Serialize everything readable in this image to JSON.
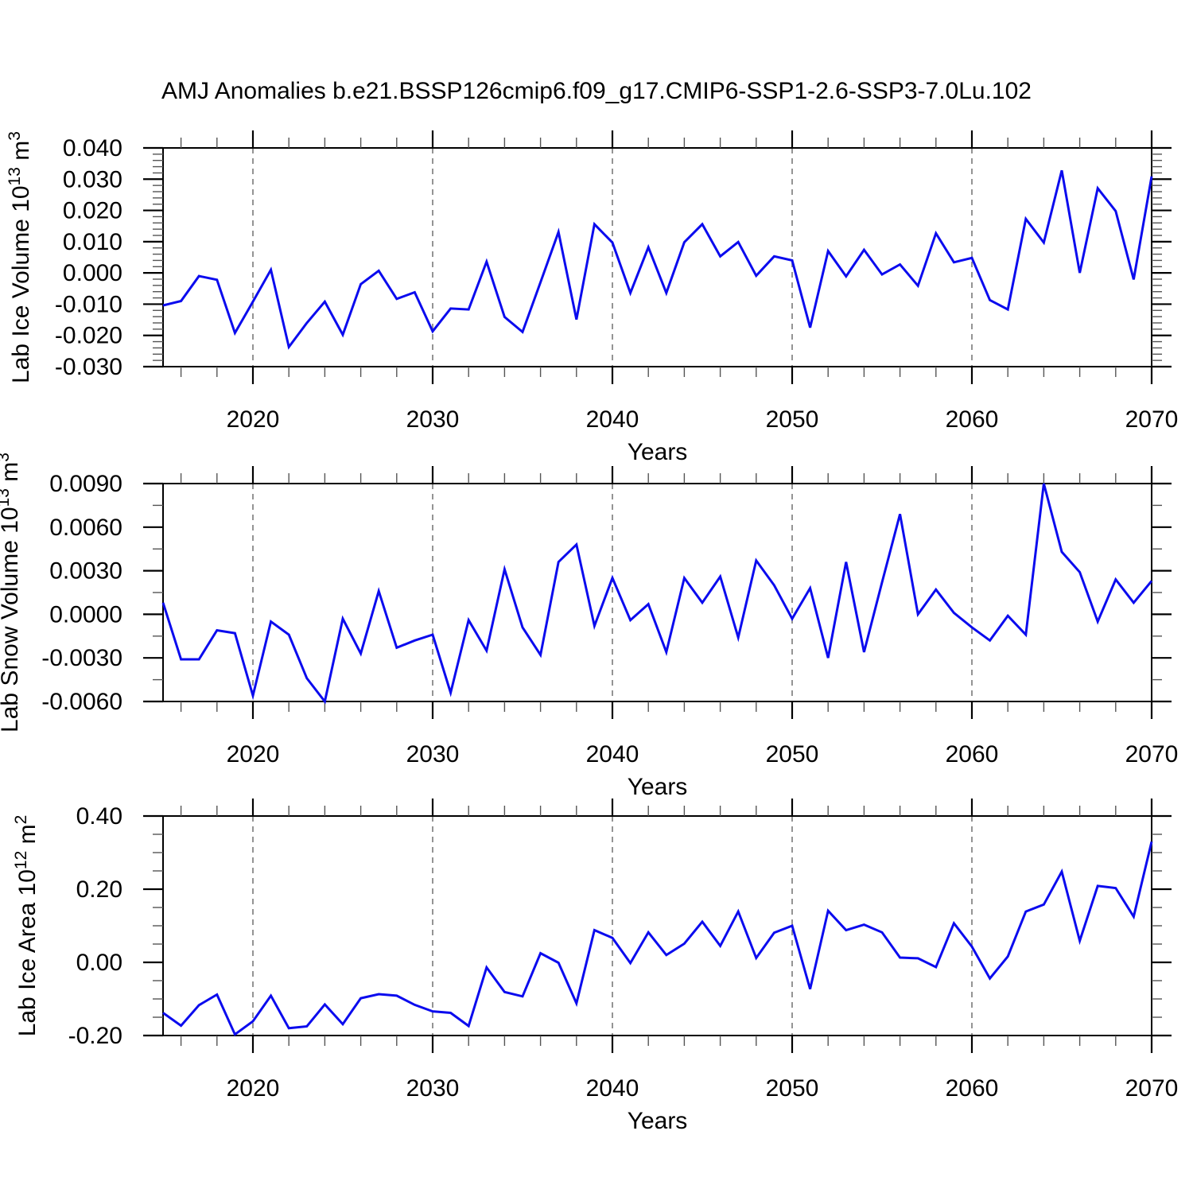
{
  "title": "AMJ Anomalies b.e21.BSSP126cmip6.f09_g17.CMIP6-SSP1-2.6-SSP3-7.0Lu.102",
  "line_color": "#0b0bee",
  "grid_color": "#888888",
  "axis_color": "#000000",
  "chart_data": [
    {
      "type": "line",
      "xlabel": "Years",
      "ylabel": "Lab Ice Volume 10^13 m^3",
      "ylabel_parts": [
        {
          "t": "Lab Ice Volume 10"
        },
        {
          "t": "13",
          "sup": true
        },
        {
          "t": " m"
        },
        {
          "t": "3",
          "sup": true
        }
      ],
      "x": [
        2015,
        2016,
        2017,
        2018,
        2019,
        2020,
        2021,
        2022,
        2023,
        2024,
        2025,
        2026,
        2027,
        2028,
        2029,
        2030,
        2031,
        2032,
        2033,
        2034,
        2035,
        2036,
        2037,
        2038,
        2039,
        2040,
        2041,
        2042,
        2043,
        2044,
        2045,
        2046,
        2047,
        2048,
        2049,
        2050,
        2051,
        2052,
        2053,
        2054,
        2055,
        2056,
        2057,
        2058,
        2059,
        2060,
        2061,
        2062,
        2063,
        2064,
        2065,
        2066,
        2067,
        2068,
        2069,
        2070
      ],
      "values": [
        -0.0104,
        -0.009,
        -0.001,
        -0.0022,
        -0.0192,
        -0.0092,
        0.001,
        -0.0237,
        -0.016,
        -0.0092,
        -0.0198,
        -0.0036,
        0.0007,
        -0.0083,
        -0.0062,
        -0.0187,
        -0.0114,
        -0.0117,
        0.0036,
        -0.0141,
        -0.0189,
        -0.003,
        0.0131,
        -0.0149,
        0.0156,
        0.0097,
        -0.0064,
        0.0082,
        -0.0064,
        0.0098,
        0.0156,
        0.0053,
        0.0099,
        -0.0009,
        0.0053,
        0.004,
        -0.0175,
        0.007,
        -0.0011,
        0.0074,
        -0.0005,
        0.0027,
        -0.0041,
        0.0127,
        0.0034,
        0.0048,
        -0.0087,
        -0.0117,
        0.0173,
        0.0097,
        0.0328,
        0.0,
        0.0271,
        0.0198,
        -0.0021,
        0.0309
      ],
      "ylim": [
        -0.03,
        0.04
      ],
      "yticks": [
        -0.03,
        -0.02,
        -0.01,
        0.0,
        0.01,
        0.02,
        0.03,
        0.04
      ],
      "ytick_labels": [
        "-0.030",
        "-0.020",
        "-0.010",
        "0.000",
        "0.010",
        "0.020",
        "0.030",
        "0.040"
      ],
      "ytick_step": 0.01,
      "yminor_step": 0.002,
      "xlim": [
        2015,
        2070
      ],
      "xticks": [
        2020,
        2030,
        2040,
        2050,
        2060,
        2070
      ],
      "xtick_labels": [
        "2020",
        "2030",
        "2040",
        "2050",
        "2060",
        "2070"
      ],
      "xminor_step": 2,
      "gridlines_at": [
        2020,
        2030,
        2040,
        2050,
        2060
      ],
      "grid": "vertical-dashed",
      "legend": "none"
    },
    {
      "type": "line",
      "xlabel": "Years",
      "ylabel": "Lab Snow Volume 10^13 m^3",
      "ylabel_parts": [
        {
          "t": "Lab Snow Volume 10"
        },
        {
          "t": "13",
          "sup": true
        },
        {
          "t": " m"
        },
        {
          "t": "3",
          "sup": true
        }
      ],
      "x": [
        2015,
        2016,
        2017,
        2018,
        2019,
        2020,
        2021,
        2022,
        2023,
        2024,
        2025,
        2026,
        2027,
        2028,
        2029,
        2030,
        2031,
        2032,
        2033,
        2034,
        2035,
        2036,
        2037,
        2038,
        2039,
        2040,
        2041,
        2042,
        2043,
        2044,
        2045,
        2046,
        2047,
        2048,
        2049,
        2050,
        2051,
        2052,
        2053,
        2054,
        2055,
        2056,
        2057,
        2058,
        2059,
        2060,
        2061,
        2062,
        2063,
        2064,
        2065,
        2066,
        2067,
        2068,
        2069,
        2070
      ],
      "values": [
        0.0008,
        -0.0031,
        -0.0031,
        -0.0011,
        -0.0013,
        -0.0056,
        -0.0005,
        -0.0014,
        -0.0044,
        -0.006,
        -0.0003,
        -0.0027,
        0.0016,
        -0.0023,
        -0.0018,
        -0.0014,
        -0.0054,
        -0.0004,
        -0.0025,
        0.0031,
        -0.0009,
        -0.0028,
        0.0036,
        0.0048,
        -0.0008,
        0.0025,
        -0.0004,
        0.0007,
        -0.0026,
        0.0025,
        0.0008,
        0.0026,
        -0.0016,
        0.0037,
        0.002,
        -0.0003,
        0.0018,
        -0.003,
        0.0036,
        -0.0026,
        0.0022,
        0.0069,
        0.0,
        0.0017,
        0.0001,
        -0.0009,
        -0.0018,
        -0.0001,
        -0.0014,
        0.009,
        0.0043,
        0.0029,
        -0.0005,
        0.0024,
        0.0008,
        0.0023
      ],
      "ylim": [
        -0.006,
        0.009
      ],
      "yticks": [
        -0.006,
        -0.003,
        0.0,
        0.003,
        0.006,
        0.009
      ],
      "ytick_labels": [
        "-0.0060",
        "-0.0030",
        "0.0000",
        "0.0030",
        "0.0060",
        "0.0090"
      ],
      "ytick_step": 0.003,
      "yminor_step": 0.0015,
      "xlim": [
        2015,
        2070
      ],
      "xticks": [
        2020,
        2030,
        2040,
        2050,
        2060,
        2070
      ],
      "xtick_labels": [
        "2020",
        "2030",
        "2040",
        "2050",
        "2060",
        "2070"
      ],
      "xminor_step": 2,
      "gridlines_at": [
        2020,
        2030,
        2040,
        2050,
        2060
      ],
      "grid": "vertical-dashed",
      "legend": "none"
    },
    {
      "type": "line",
      "xlabel": "Years",
      "ylabel": "Lab Ice Area 10^12 m^2",
      "ylabel_parts": [
        {
          "t": "Lab Ice Area 10"
        },
        {
          "t": "12",
          "sup": true
        },
        {
          "t": " m"
        },
        {
          "t": "2",
          "sup": true
        }
      ],
      "x": [
        2015,
        2016,
        2017,
        2018,
        2019,
        2020,
        2021,
        2022,
        2023,
        2024,
        2025,
        2026,
        2027,
        2028,
        2029,
        2030,
        2031,
        2032,
        2033,
        2034,
        2035,
        2036,
        2037,
        2038,
        2039,
        2040,
        2041,
        2042,
        2043,
        2044,
        2045,
        2046,
        2047,
        2048,
        2049,
        2050,
        2051,
        2052,
        2053,
        2054,
        2055,
        2056,
        2057,
        2058,
        2059,
        2060,
        2061,
        2062,
        2063,
        2064,
        2065,
        2066,
        2067,
        2068,
        2069,
        2070
      ],
      "values": [
        -0.138,
        -0.173,
        -0.117,
        -0.088,
        -0.197,
        -0.161,
        -0.091,
        -0.18,
        -0.175,
        -0.115,
        -0.169,
        -0.098,
        -0.087,
        -0.091,
        -0.116,
        -0.134,
        -0.138,
        -0.174,
        -0.014,
        -0.081,
        -0.093,
        0.025,
        -0.001,
        -0.112,
        0.088,
        0.067,
        -0.002,
        0.082,
        0.02,
        0.051,
        0.111,
        0.045,
        0.139,
        0.012,
        0.081,
        0.1,
        -0.073,
        0.141,
        0.088,
        0.103,
        0.082,
        0.013,
        0.011,
        -0.013,
        0.107,
        0.043,
        -0.044,
        0.016,
        0.139,
        0.158,
        0.248,
        0.059,
        0.209,
        0.203,
        0.125,
        0.33
      ],
      "ylim": [
        -0.2,
        0.4
      ],
      "yticks": [
        -0.2,
        0.0,
        0.2,
        0.4
      ],
      "ytick_labels": [
        "-0.20",
        "0.00",
        "0.20",
        "0.40"
      ],
      "ytick_step": 0.2,
      "yminor_step": 0.05,
      "xlim": [
        2015,
        2070
      ],
      "xticks": [
        2020,
        2030,
        2040,
        2050,
        2060,
        2070
      ],
      "xtick_labels": [
        "2020",
        "2030",
        "2040",
        "2050",
        "2060",
        "2070"
      ],
      "xminor_step": 2,
      "gridlines_at": [
        2020,
        2030,
        2040,
        2050,
        2060
      ],
      "grid": "vertical-dashed",
      "legend": "none"
    }
  ]
}
